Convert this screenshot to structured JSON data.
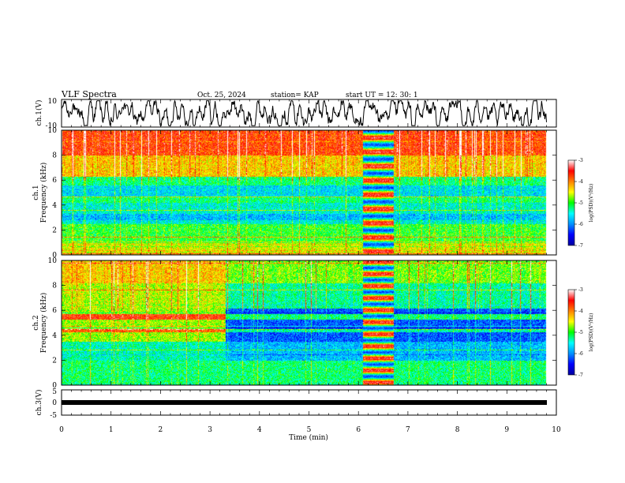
{
  "header": {
    "title": "VLF Spectra",
    "date": "Oct. 25, 2024",
    "station": "station= KAP",
    "start_ut": "start  UT =   12: 30: 1"
  },
  "colors": {
    "colormap": [
      "#0000a0",
      "#0000ff",
      "#0090ff",
      "#00ffff",
      "#00ff00",
      "#ffff00",
      "#ff8000",
      "#ff0000",
      "#ffffff"
    ],
    "waveform": "#000000",
    "background": "#ffffff"
  },
  "chart_data": [
    {
      "type": "line",
      "panel": "ch1-waveform",
      "ylabel": "ch.1(V)",
      "ylim": [
        -10,
        10
      ],
      "yticks": [
        "10",
        "-10"
      ],
      "xlim": [
        0,
        10
      ],
      "x": [
        0,
        0.5,
        1,
        1.5,
        2,
        2.5,
        3,
        3.5,
        4,
        4.5,
        5,
        5.5,
        6,
        6.5,
        7,
        7.5,
        8,
        8.5,
        9,
        9.5,
        9.8
      ],
      "y": [
        0,
        2,
        -2,
        3,
        -1,
        1,
        -3,
        2,
        -2,
        1,
        3,
        -1,
        2,
        -3,
        -2,
        1,
        2,
        -1,
        3,
        -2,
        0
      ]
    },
    {
      "type": "heatmap",
      "panel": "ch1-spectrogram",
      "ylabel": "ch.1",
      "ylabel2": "Frequency (kHz)",
      "xlim": [
        0,
        9.8
      ],
      "ylim": [
        0,
        10
      ],
      "yticks": [
        "0",
        "2",
        "4",
        "6",
        "8",
        "10"
      ],
      "colorbar": {
        "label": "log(PSD)(V²/Hz)",
        "range": [
          -7,
          -3
        ],
        "ticks": [
          "-3",
          "-4",
          "-5",
          "-6",
          "-7"
        ]
      },
      "bursts": [
        {
          "t_start": 6.1,
          "t_end": 6.7
        }
      ]
    },
    {
      "type": "heatmap",
      "panel": "ch2-spectrogram",
      "ylabel": "ch.2",
      "ylabel2": "Frequency (kHz)",
      "xlim": [
        0,
        9.8
      ],
      "ylim": [
        0,
        10
      ],
      "yticks": [
        "0",
        "2",
        "4",
        "6",
        "8",
        "10"
      ],
      "colorbar": {
        "label": "log(PSD)(V²/Hz)",
        "range": [
          -7,
          -3
        ],
        "ticks": [
          "-3",
          "-4",
          "-5",
          "-6",
          "-7"
        ]
      },
      "bursts": [
        {
          "t_start": 6.1,
          "t_end": 6.7
        }
      ],
      "change_time": 3.3
    },
    {
      "type": "line",
      "panel": "ch3-waveform",
      "ylabel": "ch.3(V)",
      "ylim": [
        -5,
        5
      ],
      "yticks": [
        "5",
        "0",
        "-5"
      ],
      "xlim": [
        0,
        10
      ],
      "x": [
        0,
        9.8
      ],
      "y": [
        0,
        0
      ]
    }
  ],
  "xaxis": {
    "label": "Time (min)",
    "ticks": [
      "0",
      "1",
      "2",
      "3",
      "4",
      "5",
      "6",
      "7",
      "8",
      "9",
      "10"
    ],
    "range": [
      0,
      10
    ]
  }
}
